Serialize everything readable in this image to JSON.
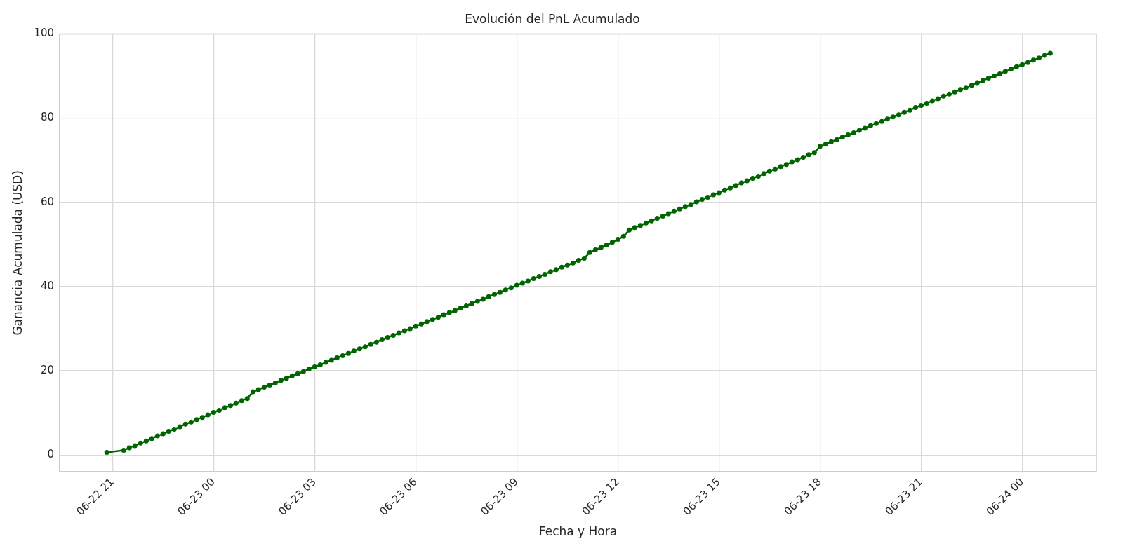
{
  "chart_data": {
    "type": "line",
    "title": "Evolución del PnL Acumulado",
    "xlabel": "Fecha y Hora",
    "ylabel": "Ganancia Acumulada (USD)",
    "x": [
      "--06-22T20:50",
      "--06-22T21:20",
      "--06-22T21:30",
      "--06-22T21:40",
      "--06-22T21:50",
      "--06-22T22:00",
      "--06-22T22:10",
      "--06-22T22:20",
      "--06-22T22:30",
      "--06-22T22:40",
      "--06-22T22:50",
      "--06-22T23:00",
      "--06-22T23:10",
      "--06-22T23:20",
      "--06-22T23:30",
      "--06-22T23:40",
      "--06-22T23:50",
      "--06-23T00:00",
      "--06-23T00:10",
      "--06-23T00:20",
      "--06-23T00:30",
      "--06-23T00:40",
      "--06-23T00:50",
      "--06-23T01:00",
      "--06-23T01:10",
      "--06-23T01:20",
      "--06-23T01:30",
      "--06-23T01:40",
      "--06-23T01:50",
      "--06-23T02:00",
      "--06-23T02:10",
      "--06-23T02:20",
      "--06-23T02:30",
      "--06-23T02:40",
      "--06-23T02:50",
      "--06-23T03:00",
      "--06-23T03:10",
      "--06-23T03:20",
      "--06-23T03:30",
      "--06-23T03:40",
      "--06-23T03:50",
      "--06-23T04:00",
      "--06-23T04:10",
      "--06-23T04:20",
      "--06-23T04:30",
      "--06-23T04:40",
      "--06-23T04:50",
      "--06-23T05:00",
      "--06-23T05:10",
      "--06-23T05:20",
      "--06-23T05:30",
      "--06-23T05:40",
      "--06-23T05:50",
      "--06-23T06:00",
      "--06-23T06:10",
      "--06-23T06:20",
      "--06-23T06:30",
      "--06-23T06:40",
      "--06-23T06:50",
      "--06-23T07:00",
      "--06-23T07:10",
      "--06-23T07:20",
      "--06-23T07:30",
      "--06-23T07:40",
      "--06-23T07:50",
      "--06-23T08:00",
      "--06-23T08:10",
      "--06-23T08:20",
      "--06-23T08:30",
      "--06-23T08:40",
      "--06-23T08:50",
      "--06-23T09:00",
      "--06-23T09:10",
      "--06-23T09:20",
      "--06-23T09:30",
      "--06-23T09:40",
      "--06-23T09:50",
      "--06-23T10:00",
      "--06-23T10:10",
      "--06-23T10:20",
      "--06-23T10:30",
      "--06-23T10:40",
      "--06-23T10:50",
      "--06-23T11:00",
      "--06-23T11:10",
      "--06-23T11:20",
      "--06-23T11:30",
      "--06-23T11:40",
      "--06-23T11:50",
      "--06-23T12:00",
      "--06-23T12:10",
      "--06-23T12:20",
      "--06-23T12:30",
      "--06-23T12:40",
      "--06-23T12:50",
      "--06-23T13:00",
      "--06-23T13:10",
      "--06-23T13:20",
      "--06-23T13:30",
      "--06-23T13:40",
      "--06-23T13:50",
      "--06-23T14:00",
      "--06-23T14:10",
      "--06-23T14:20",
      "--06-23T14:30",
      "--06-23T14:40",
      "--06-23T14:50",
      "--06-23T15:00",
      "--06-23T15:10",
      "--06-23T15:20",
      "--06-23T15:30",
      "--06-23T15:40",
      "--06-23T15:50",
      "--06-23T16:00",
      "--06-23T16:10",
      "--06-23T16:20",
      "--06-23T16:30",
      "--06-23T16:40",
      "--06-23T16:50",
      "--06-23T17:00",
      "--06-23T17:10",
      "--06-23T17:20",
      "--06-23T17:30",
      "--06-23T17:40",
      "--06-23T17:50",
      "--06-23T18:00",
      "--06-23T18:10",
      "--06-23T18:20",
      "--06-23T18:30",
      "--06-23T18:40",
      "--06-23T18:50",
      "--06-23T19:00",
      "--06-23T19:10",
      "--06-23T19:20",
      "--06-23T19:30",
      "--06-23T19:40",
      "--06-23T19:50",
      "--06-23T20:00",
      "--06-23T20:10",
      "--06-23T20:20",
      "--06-23T20:30",
      "--06-23T20:40",
      "--06-23T20:50",
      "--06-23T21:00",
      "--06-23T21:10",
      "--06-23T21:20",
      "--06-23T21:30",
      "--06-23T21:40",
      "--06-23T21:50",
      "--06-23T22:00",
      "--06-23T22:10",
      "--06-23T22:20",
      "--06-23T22:30",
      "--06-23T22:40",
      "--06-23T22:50",
      "--06-23T23:00",
      "--06-23T23:10",
      "--06-23T23:20",
      "--06-23T23:30",
      "--06-23T23:40",
      "--06-23T23:50",
      "--06-24T00:00",
      "--06-24T00:10",
      "--06-24T00:20",
      "--06-24T00:30",
      "--06-24T00:40",
      "--06-24T00:50"
    ],
    "series": [
      {
        "color": "#006400",
        "values": [
          0.6,
          1.1,
          1.7,
          2.2,
          2.8,
          3.3,
          3.9,
          4.5,
          5.0,
          5.6,
          6.1,
          6.7,
          7.3,
          7.8,
          8.4,
          8.9,
          9.5,
          10.1,
          10.6,
          11.2,
          11.7,
          12.3,
          12.9,
          13.4,
          15.0,
          15.5,
          16.1,
          16.6,
          17.1,
          17.7,
          18.2,
          18.8,
          19.3,
          19.8,
          20.4,
          20.9,
          21.4,
          22.0,
          22.5,
          23.1,
          23.6,
          24.1,
          24.7,
          25.2,
          25.7,
          26.3,
          26.8,
          27.4,
          27.9,
          28.4,
          29.0,
          29.5,
          30.0,
          30.6,
          31.1,
          31.7,
          32.2,
          32.7,
          33.3,
          33.8,
          34.3,
          34.9,
          35.4,
          36.0,
          36.5,
          37.0,
          37.6,
          38.1,
          38.6,
          39.2,
          39.7,
          40.3,
          40.8,
          41.3,
          41.9,
          42.4,
          42.9,
          43.5,
          44.0,
          44.6,
          45.1,
          45.6,
          46.2,
          46.7,
          48.1,
          48.7,
          49.3,
          49.9,
          50.5,
          51.2,
          51.9,
          53.4,
          54.0,
          54.5,
          55.1,
          55.6,
          56.2,
          56.7,
          57.3,
          57.9,
          58.4,
          59.0,
          59.5,
          60.1,
          60.7,
          61.2,
          61.8,
          62.3,
          62.9,
          63.4,
          64.0,
          64.6,
          65.1,
          65.7,
          66.2,
          66.8,
          67.4,
          67.9,
          68.5,
          69.0,
          69.6,
          70.1,
          70.7,
          71.3,
          71.8,
          73.3,
          73.8,
          74.4,
          74.9,
          75.5,
          76.0,
          76.5,
          77.1,
          77.6,
          78.2,
          78.7,
          79.2,
          79.8,
          80.3,
          80.8,
          81.4,
          81.9,
          82.5,
          83.0,
          83.5,
          84.1,
          84.6,
          85.2,
          85.7,
          86.2,
          86.8,
          87.3,
          87.8,
          88.4,
          88.9,
          89.5,
          90.0,
          90.5,
          91.1,
          91.6,
          92.2,
          92.7,
          93.2,
          93.8,
          94.3,
          94.9,
          95.4
        ]
      }
    ],
    "xlim": [
      "--06-22T19:26",
      "--06-24T02:12"
    ],
    "xticks": [
      {
        "value": "--06-22T21:00",
        "label": "06-22 21"
      },
      {
        "value": "--06-23T00:00",
        "label": "06-23 00"
      },
      {
        "value": "--06-23T03:00",
        "label": "06-23 03"
      },
      {
        "value": "--06-23T06:00",
        "label": "06-23 06"
      },
      {
        "value": "--06-23T09:00",
        "label": "06-23 09"
      },
      {
        "value": "--06-23T12:00",
        "label": "06-23 12"
      },
      {
        "value": "--06-23T15:00",
        "label": "06-23 15"
      },
      {
        "value": "--06-23T18:00",
        "label": "06-23 18"
      },
      {
        "value": "--06-23T21:00",
        "label": "06-23 21"
      },
      {
        "value": "--06-24T00:00",
        "label": "06-24 00"
      }
    ],
    "ylim": [
      -4,
      100
    ],
    "yticks": [
      0,
      20,
      40,
      60,
      80,
      100
    ],
    "grid": true,
    "legend": false,
    "marker": "circle",
    "line_style": "solid"
  }
}
